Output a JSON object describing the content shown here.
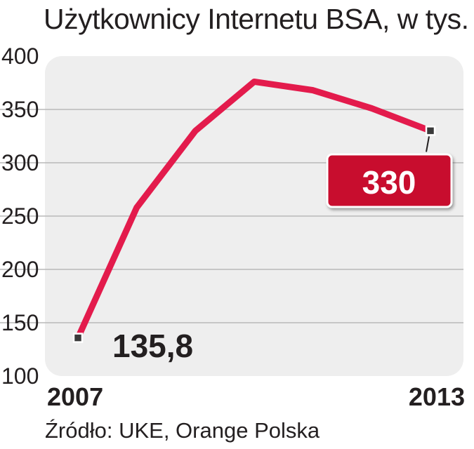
{
  "chart_data": {
    "type": "line",
    "title": "Użytkownicy Internetu BSA, w tys.",
    "source": "Źródło: UKE, Orange Polska",
    "x": [
      2007,
      2008,
      2009,
      2010,
      2011,
      2012,
      2013
    ],
    "x_tick_labels": [
      "2007",
      "2013"
    ],
    "series": [
      {
        "values": [
          135.8,
          258,
          330,
          376,
          368,
          351,
          330
        ]
      }
    ],
    "ylim": [
      100,
      400
    ],
    "y_ticks": [
      "400",
      "350",
      "300",
      "250",
      "200",
      "150",
      "100"
    ],
    "annotations": [
      {
        "text": "135,8",
        "x": 2007,
        "style": "plain"
      },
      {
        "text": "330",
        "x": 2013,
        "style": "boxed"
      }
    ],
    "grid": true,
    "line_color": "#e31b4c",
    "highlight_color": "#c8102e"
  }
}
